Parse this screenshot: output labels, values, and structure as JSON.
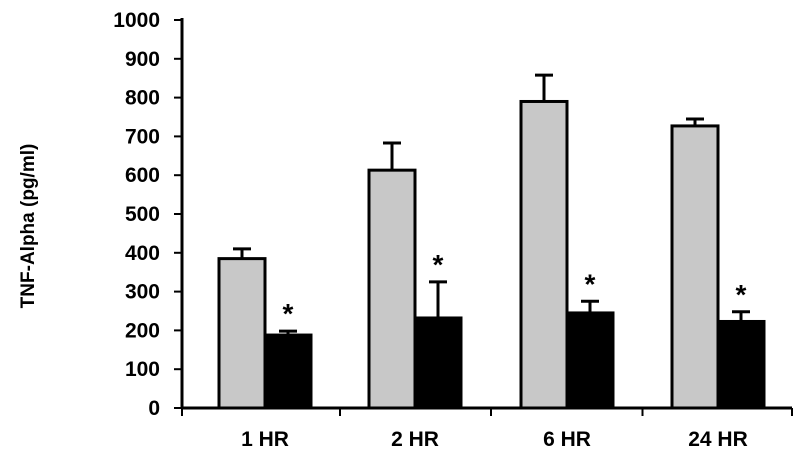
{
  "chart_data": {
    "type": "bar",
    "title": "",
    "xlabel": "",
    "ylabel": "TNF-Alpha (pg/ml)",
    "ylim": [
      0,
      1000
    ],
    "yticks": [
      "0",
      "100",
      "200",
      "300",
      "400",
      "500",
      "600",
      "700",
      "800",
      "900",
      "1000"
    ],
    "categories": [
      "1 HR",
      "2 HR",
      "6 HR",
      "24 HR"
    ],
    "grid": false,
    "legend": "none",
    "series": [
      {
        "color": "#c8c8c8",
        "values": [
          385,
          613,
          790,
          727
        ],
        "errors": [
          25,
          70,
          68,
          18
        ]
      },
      {
        "color": "#000000",
        "values": [
          188,
          232,
          245,
          223
        ],
        "errors": [
          10,
          93,
          30,
          25
        ]
      }
    ],
    "annotations": [
      {
        "category": "1 HR",
        "series": 1,
        "text": "*"
      },
      {
        "category": "2 HR",
        "series": 1,
        "text": "*"
      },
      {
        "category": "6 HR",
        "series": 1,
        "text": "*"
      },
      {
        "category": "24 HR",
        "series": 1,
        "text": "*"
      }
    ]
  }
}
